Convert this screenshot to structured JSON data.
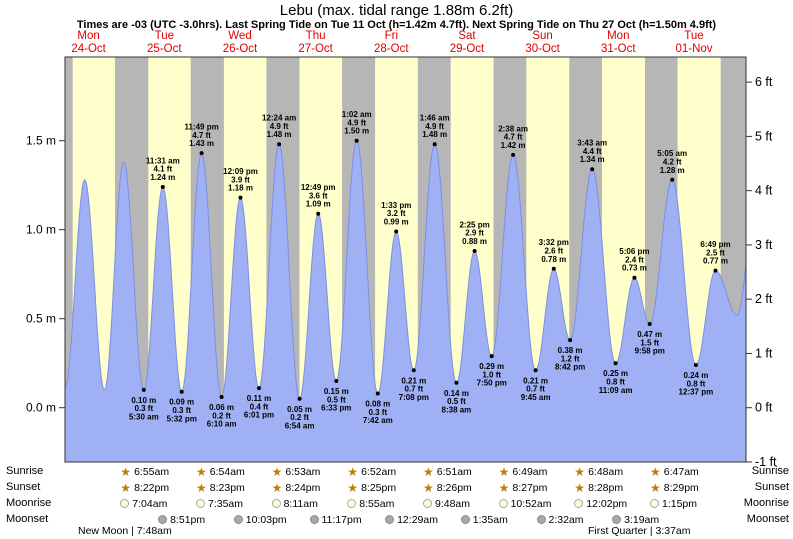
{
  "title": "Lebu (max. tidal range 1.88m 6.2ft)",
  "subtitle": "Times are -03 (UTC -3.0hrs). Last Spring Tide on Tue 11 Oct (h=1.42m 4.7ft). Next Spring Tide on Thu 27 Oct (h=1.50m 4.9ft)",
  "colors": {
    "daylight": "#ffffcc",
    "night": "#b6b6b6",
    "tide_fill": "#9fb0f5",
    "tide_stroke": "#7d90e0",
    "day_label": "#dd0000",
    "frame": "#333333",
    "annotation": "#000000"
  },
  "chart_data": {
    "type": "area",
    "title": "Lebu (max. tidal range 1.88m 6.2ft)",
    "t_range": [
      4.5,
      220.5
    ],
    "m_range": [
      -0.305,
      1.97
    ],
    "days": [
      {
        "dow": "Mon",
        "date": "24-Oct"
      },
      {
        "dow": "Tue",
        "date": "25-Oct"
      },
      {
        "dow": "Wed",
        "date": "26-Oct"
      },
      {
        "dow": "Thu",
        "date": "27-Oct"
      },
      {
        "dow": "Fri",
        "date": "28-Oct"
      },
      {
        "dow": "Sat",
        "date": "29-Oct"
      },
      {
        "dow": "Sun",
        "date": "30-Oct"
      },
      {
        "dow": "Mon",
        "date": "31-Oct"
      },
      {
        "dow": "Tue",
        "date": "01-Nov"
      }
    ],
    "y_axis_left": {
      "unit": "m",
      "ticks": [
        "0.0 m",
        "0.5 m",
        "1.0 m",
        "1.5 m"
      ],
      "values": [
        0,
        0.5,
        1.0,
        1.5
      ]
    },
    "y_axis_right": {
      "unit": "ft",
      "ticks": [
        "-1 ft",
        "0 ft",
        "1 ft",
        "2 ft",
        "3 ft",
        "4 ft",
        "5 ft",
        "6 ft"
      ],
      "values": [
        -1,
        0,
        1,
        2,
        3,
        4,
        5,
        6
      ]
    },
    "daylight": [
      {
        "from": 6.93,
        "to": 20.35
      },
      {
        "from": 30.92,
        "to": 44.37
      },
      {
        "from": 54.9,
        "to": 68.38
      },
      {
        "from": 78.88,
        "to": 92.4
      },
      {
        "from": 102.87,
        "to": 116.42
      },
      {
        "from": 126.85,
        "to": 140.43
      },
      {
        "from": 150.82,
        "to": 164.45
      },
      {
        "from": 174.8,
        "to": 188.47
      },
      {
        "from": 198.78,
        "to": 212.48
      }
    ],
    "tide_events": [
      {
        "t": -1.5,
        "m": 1.3,
        "type": "high",
        "est": true,
        "lines": []
      },
      {
        "t": 4.58,
        "m": 0.12,
        "type": "low",
        "est": true,
        "lines": []
      },
      {
        "t": 10.75,
        "m": 1.28,
        "type": "high",
        "est": true,
        "lines": []
      },
      {
        "t": 17.0,
        "m": 0.1,
        "type": "low",
        "est": true,
        "lines": []
      },
      {
        "t": 23.12,
        "m": 1.38,
        "type": "high",
        "est": true,
        "lines": []
      },
      {
        "t": 29.5,
        "m": 0.1,
        "type": "low",
        "lines": [
          "0.10 m",
          "0.3 ft",
          "5:30 am"
        ]
      },
      {
        "t": 35.52,
        "m": 1.24,
        "type": "high",
        "lines": [
          "11:31 am",
          "4.1 ft",
          "1.24 m"
        ]
      },
      {
        "t": 41.53,
        "m": 0.09,
        "type": "low",
        "lines": [
          "0.09 m",
          "0.3 ft",
          "5:32 pm"
        ]
      },
      {
        "t": 47.82,
        "m": 1.43,
        "type": "high",
        "lines": [
          "11:49 pm",
          "4.7 ft",
          "1.43 m"
        ]
      },
      {
        "t": 54.17,
        "m": 0.06,
        "type": "low",
        "lines": [
          "0.06 m",
          "0.2 ft",
          "6:10 am"
        ]
      },
      {
        "t": 60.15,
        "m": 1.18,
        "type": "high",
        "lines": [
          "12:09 pm",
          "3.9 ft",
          "1.18 m"
        ]
      },
      {
        "t": 66.02,
        "m": 0.11,
        "type": "low",
        "lines": [
          "0.11 m",
          "0.4 ft",
          "6:01 pm"
        ]
      },
      {
        "t": 72.4,
        "m": 1.48,
        "type": "high",
        "lines": [
          "12:24 am",
          "4.9 ft",
          "1.48 m"
        ]
      },
      {
        "t": 78.9,
        "m": 0.05,
        "type": "low",
        "lines": [
          "0.05 m",
          "0.2 ft",
          "6:54 am"
        ]
      },
      {
        "t": 84.82,
        "m": 1.09,
        "type": "high",
        "lines": [
          "12:49 pm",
          "3.6 ft",
          "1.09 m"
        ]
      },
      {
        "t": 90.55,
        "m": 0.15,
        "type": "low",
        "lines": [
          "0.15 m",
          "0.5 ft",
          "6:33 pm"
        ]
      },
      {
        "t": 97.03,
        "m": 1.5,
        "type": "high",
        "lines": [
          "1:02 am",
          "4.9 ft",
          "1.50 m"
        ]
      },
      {
        "t": 103.7,
        "m": 0.08,
        "type": "low",
        "lines": [
          "0.08 m",
          "0.3 ft",
          "7:42 am"
        ]
      },
      {
        "t": 109.55,
        "m": 0.99,
        "type": "high",
        "lines": [
          "1:33 pm",
          "3.2 ft",
          "0.99 m"
        ]
      },
      {
        "t": 115.13,
        "m": 0.21,
        "type": "low",
        "lines": [
          "0.21 m",
          "0.7 ft",
          "7:08 pm"
        ]
      },
      {
        "t": 121.77,
        "m": 1.48,
        "type": "high",
        "lines": [
          "1:46 am",
          "4.9 ft",
          "1.48 m"
        ]
      },
      {
        "t": 128.63,
        "m": 0.14,
        "type": "low",
        "lines": [
          "0.14 m",
          "0.5 ft",
          "8:38 am"
        ]
      },
      {
        "t": 134.42,
        "m": 0.88,
        "type": "high",
        "lines": [
          "2:25 pm",
          "2.9 ft",
          "0.88 m"
        ]
      },
      {
        "t": 139.83,
        "m": 0.29,
        "type": "low",
        "lines": [
          "0.29 m",
          "1.0 ft",
          "7:50 pm"
        ]
      },
      {
        "t": 146.63,
        "m": 1.42,
        "type": "high",
        "lines": [
          "2:38 am",
          "4.7 ft",
          "1.42 m"
        ]
      },
      {
        "t": 153.75,
        "m": 0.21,
        "type": "low",
        "lines": [
          "0.21 m",
          "0.7 ft",
          "9:45 am"
        ]
      },
      {
        "t": 159.53,
        "m": 0.78,
        "type": "high",
        "lines": [
          "3:32 pm",
          "2.6 ft",
          "0.78 m"
        ]
      },
      {
        "t": 164.7,
        "m": 0.38,
        "type": "low",
        "lines": [
          "0.38 m",
          "1.2 ft",
          "8:42 pm"
        ]
      },
      {
        "t": 171.72,
        "m": 1.34,
        "type": "high",
        "lines": [
          "3:43 am",
          "4.4 ft",
          "1.34 m"
        ]
      },
      {
        "t": 179.15,
        "m": 0.25,
        "type": "low",
        "lines": [
          "0.25 m",
          "0.8 ft",
          "11:09 am"
        ]
      },
      {
        "t": 185.1,
        "m": 0.73,
        "type": "high",
        "lines": [
          "5:06 pm",
          "2.4 ft",
          "0.73 m"
        ]
      },
      {
        "t": 189.97,
        "m": 0.47,
        "type": "low",
        "lines": [
          "0.47 m",
          "1.5 ft",
          "9:58 pm"
        ]
      },
      {
        "t": 197.08,
        "m": 1.28,
        "type": "high",
        "lines": [
          "5:05 am",
          "4.2 ft",
          "1.28 m"
        ]
      },
      {
        "t": 204.62,
        "m": 0.24,
        "type": "low",
        "lines": [
          "0.24 m",
          "0.8 ft",
          "12:37 pm"
        ]
      },
      {
        "t": 210.82,
        "m": 0.77,
        "type": "high",
        "lines": [
          "6:49 pm",
          "2.5 ft",
          "0.77 m"
        ]
      },
      {
        "t": 217.7,
        "m": 0.52,
        "type": "low",
        "est": true,
        "lines": []
      },
      {
        "t": 224.0,
        "m": 1.22,
        "type": "high",
        "est": true,
        "lines": []
      }
    ]
  },
  "almanac": {
    "rows": [
      {
        "key": "sunrise",
        "label": "Sunrise",
        "icon": "sun-star",
        "anchor": "noon",
        "entries": [
          {
            "day": 1,
            "time": "6:55am"
          },
          {
            "day": 2,
            "time": "6:54am"
          },
          {
            "day": 3,
            "time": "6:53am"
          },
          {
            "day": 4,
            "time": "6:52am"
          },
          {
            "day": 5,
            "time": "6:51am"
          },
          {
            "day": 6,
            "time": "6:49am"
          },
          {
            "day": 7,
            "time": "6:48am"
          },
          {
            "day": 8,
            "time": "6:47am"
          }
        ]
      },
      {
        "key": "sunset",
        "label": "Sunset",
        "icon": "sun-star",
        "anchor": "noon",
        "entries": [
          {
            "day": 1,
            "time": "8:22pm"
          },
          {
            "day": 2,
            "time": "8:23pm"
          },
          {
            "day": 3,
            "time": "8:24pm"
          },
          {
            "day": 4,
            "time": "8:25pm"
          },
          {
            "day": 5,
            "time": "8:26pm"
          },
          {
            "day": 6,
            "time": "8:27pm"
          },
          {
            "day": 7,
            "time": "8:28pm"
          },
          {
            "day": 8,
            "time": "8:29pm"
          }
        ]
      },
      {
        "key": "moonrise",
        "label": "Moonrise",
        "icon": "moon-light",
        "anchor": "noon",
        "entries": [
          {
            "day": 1,
            "time": "7:04am"
          },
          {
            "day": 2,
            "time": "7:35am"
          },
          {
            "day": 3,
            "time": "8:11am"
          },
          {
            "day": 4,
            "time": "8:55am"
          },
          {
            "day": 5,
            "time": "9:48am"
          },
          {
            "day": 6,
            "time": "10:52am"
          },
          {
            "day": 7,
            "time": "12:02pm"
          },
          {
            "day": 8,
            "time": "1:15pm"
          }
        ]
      },
      {
        "key": "moonset",
        "label": "Moonset",
        "icon": "moon-dark",
        "anchor": "midnight",
        "entries": [
          {
            "day": 1,
            "time": "8:51pm"
          },
          {
            "day": 2,
            "time": "10:03pm"
          },
          {
            "day": 3,
            "time": "11:17pm"
          },
          {
            "day": 4,
            "time": "12:29am"
          },
          {
            "day": 5,
            "time": "1:35am"
          },
          {
            "day": 6,
            "time": "2:32am"
          },
          {
            "day": 7,
            "time": "3:19am"
          }
        ]
      }
    ],
    "phases": [
      {
        "name": "New Moon",
        "time": "7:48am",
        "text": "New Moon | 7:48am"
      },
      {
        "name": "First Quarter",
        "time": "3:37am",
        "text": "First Quarter | 3:37am"
      }
    ]
  }
}
